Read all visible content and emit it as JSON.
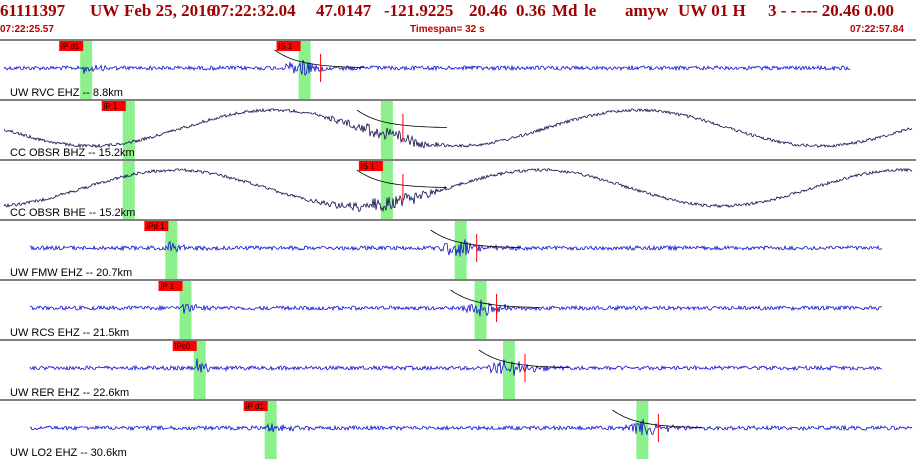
{
  "header": {
    "event_id": "61111397",
    "network": "UW",
    "date": "Feb 25, 2016",
    "time": "07:22:32.04",
    "latitude": "47.0147",
    "longitude": "-121.9225",
    "depth": "20.46",
    "magnitude": "0.36",
    "mag_type": "Md",
    "type_code": "le",
    "author": "amyw",
    "source": "UW 01 H",
    "quality_fields": "3  -  - --- 20.46 0.00",
    "start_time": "07:22:25.57",
    "timespan": "Timespan=  32 s",
    "end_time": "07:22:57.84"
  },
  "colors": {
    "header_text": "#a00000",
    "subheader_text": "#c00000",
    "trace_vertical": "#1010d0",
    "trace_horizontal": "#101050",
    "pick_label_bg": "#ff0000",
    "pick_window": "#8cf08c",
    "panel_border": "#000000"
  },
  "panels": [
    {
      "label": "UW RVC EHZ --  8.8km",
      "pick": "iP d1",
      "s_pick": "iS 1",
      "p_time": 28.5,
      "s_time": 36.3,
      "amp": 0.45,
      "kind": "z"
    },
    {
      "label": "CC OBSR BHZ --  15.2km",
      "pick": "iP 1",
      "s_pick": "",
      "p_time": 30.0,
      "s_time": 39.2,
      "amp": 0.6,
      "kind": "hz"
    },
    {
      "label": "CC OBSR BHE --  15.2km",
      "pick": "",
      "s_pick": "iS 1",
      "p_time": 30.0,
      "s_time": 39.2,
      "amp": 0.6,
      "kind": "he"
    },
    {
      "label": "UW FMW EHZ --  20.7km",
      "pick": "iPd 1",
      "s_pick": "",
      "p_time": 31.5,
      "s_time": 41.8,
      "amp": 0.5,
      "kind": "z"
    },
    {
      "label": "UW RCS EHZ --  21.5km",
      "pick": "iP 1",
      "s_pick": "",
      "p_time": 32.0,
      "s_time": 42.5,
      "amp": 0.45,
      "kind": "z"
    },
    {
      "label": "UW RER EHZ --  22.6km",
      "pick": "iPc0",
      "s_pick": "",
      "p_time": 32.5,
      "s_time": 43.5,
      "amp": 0.55,
      "kind": "z"
    },
    {
      "label": "UW LO2 EHZ --  30.6km",
      "pick": "iP d1",
      "s_pick": "",
      "p_time": 35.0,
      "s_time": 48.2,
      "amp": 0.5,
      "kind": "z"
    }
  ]
}
